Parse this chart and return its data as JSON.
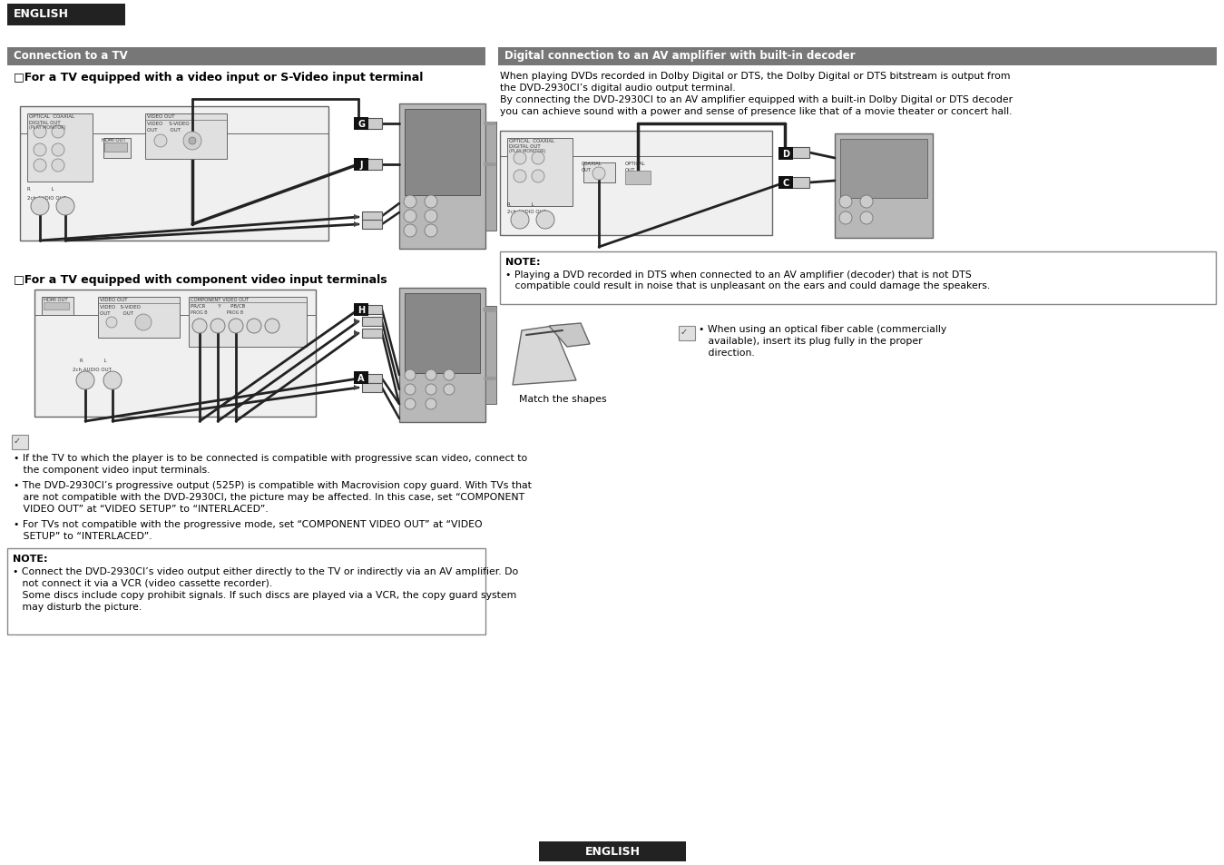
{
  "page_bg": "#ffffff",
  "header_bg": "#222222",
  "header_text": "ENGLISH",
  "header_text_color": "#ffffff",
  "section_bg": "#777777",
  "section_text_color": "#ffffff",
  "left_section_title": "Connection to a TV",
  "right_section_title": "Digital connection to an AV amplifier with built-in decoder",
  "sub1_title": "□For a TV equipped with a video input or S-Video input terminal",
  "sub2_title": "□For a TV equipped with component video input terminals",
  "right_para1": "When playing DVDs recorded in Dolby Digital or DTS, the Dolby Digital or DTS bitstream is output from",
  "right_para2": "the DVD-2930CI’s digital audio output terminal.",
  "right_para3": "By connecting the DVD-2930CI to an AV amplifier equipped with a built-in Dolby Digital or DTS decoder",
  "right_para4": "you can achieve sound with a power and sense of presence like that of a movie theater or concert hall.",
  "note_left_title": "NOTE:",
  "note_left_line1": "• Connect the DVD-2930CI’s video output either directly to the TV or indirectly via an AV amplifier. Do",
  "note_left_line2": "   not connect it via a VCR (video cassette recorder).",
  "note_left_line3": "   Some discs include copy prohibit signals. If such discs are played via a VCR, the copy guard system",
  "note_left_line4": "   may disturb the picture.",
  "note_right_title": "NOTE:",
  "note_right_line1": "• Playing a DVD recorded in DTS when connected to an AV amplifier (decoder) that is not DTS",
  "note_right_line2": "   compatible could result in noise that is unpleasant on the ears and could damage the speakers.",
  "optical_line1": "• When using an optical fiber cable (commercially",
  "optical_line2": "   available), insert its plug fully in the proper",
  "optical_line3": "   direction.",
  "match_shapes": "Match the shapes",
  "bullet1_l1": "• If the TV to which the player is to be connected is compatible with progressive scan video, connect to",
  "bullet1_l2": "   the component video input terminals.",
  "bullet2_l1": "• The DVD-2930CI’s progressive output (525P) is compatible with Macrovision copy guard. With TVs that",
  "bullet2_l2": "   are not compatible with the DVD-2930CI, the picture may be affected. In this case, set “COMPONENT",
  "bullet2_l3": "   VIDEO OUT” at “VIDEO SETUP” to “INTERLACED”.",
  "bullet3_l1": "• For TVs not compatible with the progressive mode, set “COMPONENT VIDEO OUT” at “VIDEO",
  "bullet3_l2": "   SETUP” to “INTERLACED”.",
  "footer_text": "ENGLISH",
  "device_fill": "#f0f0f0",
  "device_border": "#666666",
  "device_inner": "#e0e0e0",
  "tv_fill": "#b8b8b8",
  "tv_screen": "#888888",
  "cable_dark": "#222222",
  "cable_mid": "#666666",
  "connector_fill": "#cccccc",
  "label_bg": "#111111",
  "label_fg": "#ffffff",
  "note_border": "#888888",
  "note_fill": "#ffffff"
}
